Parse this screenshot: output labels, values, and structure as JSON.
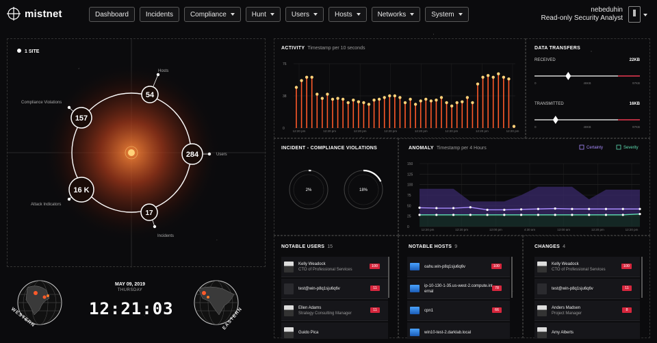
{
  "brand": {
    "name": "mistnet"
  },
  "nav": {
    "items": [
      {
        "label": "Dashboard",
        "dropdown": false
      },
      {
        "label": "Incidents",
        "dropdown": false
      },
      {
        "label": "Compliance",
        "dropdown": true
      },
      {
        "label": "Hunt",
        "dropdown": true
      },
      {
        "label": "Users",
        "dropdown": true
      },
      {
        "label": "Hosts",
        "dropdown": true
      },
      {
        "label": "Networks",
        "dropdown": true
      },
      {
        "label": "System",
        "dropdown": true
      }
    ]
  },
  "user": {
    "name": "nebeduhin",
    "role": "Read-only Security Analyst"
  },
  "site_panel": {
    "site_label": "1 SITE",
    "nodes": {
      "hosts": {
        "label": "Hosts",
        "value": "54"
      },
      "users": {
        "label": "Users",
        "value": "284"
      },
      "compliance": {
        "label": "Compliance Violations",
        "value": "157"
      },
      "attacks": {
        "label": "Attack Indicators",
        "value": "16 K"
      },
      "incidents": {
        "label": "Incidents",
        "value": "17"
      }
    }
  },
  "clock": {
    "date": "MAY 09, 2019",
    "day": "THURSDAY",
    "time": "12:21:03",
    "western_label": "WESTERN",
    "eastern_label": "EASTERN"
  },
  "activity": {
    "title": "ACTIVITY",
    "subtitle": "Timestamp per 10 seconds",
    "chart_data": {
      "type": "bar",
      "y_ticks": [
        "76",
        "38",
        "0"
      ],
      "ylim": [
        0,
        76
      ],
      "x_ticks": [
        "12:20 pm",
        "12:20 pm",
        "12:20 pm",
        "12:20 pm",
        "12:20 pm",
        "12:20 pm",
        "12:20 pm",
        "12:20 pm"
      ],
      "values": [
        48,
        56,
        60,
        60,
        40,
        35,
        40,
        34,
        35,
        34,
        30,
        33,
        31,
        30,
        28,
        33,
        34,
        36,
        38,
        38,
        36,
        30,
        34,
        28,
        32,
        34,
        32,
        33,
        36,
        30,
        26,
        30,
        31,
        36,
        30,
        52,
        60,
        62,
        60,
        64,
        60,
        58,
        2
      ]
    }
  },
  "transfers": {
    "title": "DATA TRANSFERS",
    "received": {
      "label": "RECEIVED",
      "value": "22KB",
      "min": "0",
      "mid": "48KB",
      "max": "97KB",
      "fraction": 0.32
    },
    "transmitted": {
      "label": "TRANSMITTED",
      "value": "16KB",
      "min": "0",
      "mid": "48KB",
      "max": "97KB",
      "fraction": 0.2
    }
  },
  "incident_compliance": {
    "title": "INCIDENT - COMPLIANCE VIOLATIONS",
    "gauges": [
      {
        "label": "2%",
        "fraction": 0.02
      },
      {
        "label": "18%",
        "fraction": 0.18
      }
    ]
  },
  "anomaly": {
    "title": "ANOMALY",
    "subtitle": "Timestamp per 4 Hours",
    "legend": [
      "Certainty",
      "Severity"
    ],
    "colors": {
      "certainty": "#a98cff",
      "severity": "#5fe0b4"
    },
    "chart_data": {
      "type": "line",
      "y_ticks": [
        "150",
        "125",
        "100",
        "75",
        "50",
        "25",
        "0"
      ],
      "ylim": [
        0,
        150
      ],
      "x_ticks": [
        "12:20 pm",
        "12:20 pm",
        "12:00 pm",
        "4:30 am",
        "12:00 am",
        "12:20 pm",
        "12:20 pm"
      ],
      "series": [
        {
          "name": "Certainty",
          "values": [
            45,
            44,
            44,
            46,
            40,
            40,
            41,
            42,
            43,
            42,
            42,
            42,
            42,
            42
          ]
        },
        {
          "name": "Severity",
          "values": [
            28,
            28,
            28,
            28,
            28,
            28,
            28,
            28,
            28,
            28,
            28,
            28,
            28,
            30
          ]
        },
        {
          "name": "Band",
          "values": [
            90,
            90,
            90,
            60,
            60,
            60,
            75,
            95,
            95,
            95,
            65,
            88,
            88,
            88
          ]
        }
      ]
    }
  },
  "notable_users": {
    "title": "NOTABLE USERS",
    "count": "15",
    "items": [
      {
        "name": "Kelly Weadock",
        "sub": "CTO of Professional Services",
        "score": "100",
        "photo": true
      },
      {
        "name": "test@win-p8q1sju6q6v",
        "sub": "",
        "score": "11",
        "photo": false
      },
      {
        "name": "Ellen Adams",
        "sub": "Strategy Consulting Manager",
        "score": "11",
        "photo": true
      },
      {
        "name": "Guido Pica",
        "sub": "",
        "score": "",
        "photo": true
      }
    ]
  },
  "notable_hosts": {
    "title": "NOTABLE HOSTS",
    "count": "9",
    "items": [
      {
        "name": "oahu.win-p8q1sju6q6v",
        "sub": "",
        "score": "100"
      },
      {
        "name": "ip-10-130-1-35.us-west-2.compute.int",
        "sub": "ernal",
        "score": "78"
      },
      {
        "name": "cpn1",
        "sub": "",
        "score": "66"
      },
      {
        "name": "win10-test-2.darklab.local",
        "sub": "",
        "score": ""
      }
    ]
  },
  "changes": {
    "title": "CHANGES",
    "count": "4",
    "items": [
      {
        "name": "Kelly Weadock",
        "sub": "CTO of Professional Services",
        "score": "100",
        "photo": true
      },
      {
        "name": "test@win-p8q1sju6q6v",
        "sub": "",
        "score": "11",
        "photo": false
      },
      {
        "name": "Anders Madsen",
        "sub": "Project Manager",
        "score": "8",
        "photo": true
      },
      {
        "name": "Amy Alberts",
        "sub": "",
        "score": "",
        "photo": true
      }
    ]
  }
}
